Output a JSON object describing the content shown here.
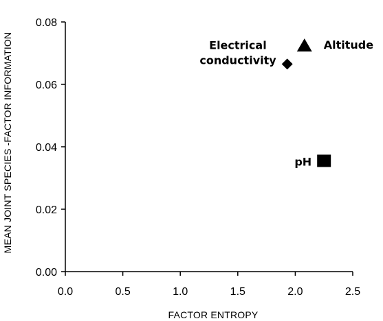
{
  "chart_data": {
    "type": "scatter",
    "title": "",
    "xlabel": "FACTOR ENTROPY",
    "ylabel": "MEAN JOINT SPECIES -FACTOR INFORMATION",
    "xlim": [
      0,
      2.5
    ],
    "ylim": [
      0,
      0.08
    ],
    "xticks": [
      "0.0",
      "0.5",
      "1.0",
      "1.5",
      "2.0",
      "2.5"
    ],
    "yticks": [
      "0.00",
      "0.02",
      "0.04",
      "0.06",
      "0.08"
    ],
    "grid": false,
    "points": [
      {
        "label": [
          "Electrical",
          "conductivity"
        ],
        "x": 1.93,
        "y": 0.0665,
        "marker": "diamond"
      },
      {
        "label": [
          "Altitude"
        ],
        "x": 2.08,
        "y": 0.0725,
        "marker": "triangle"
      },
      {
        "label": [
          "pH"
        ],
        "x": 2.25,
        "y": 0.0355,
        "marker": "square"
      }
    ]
  }
}
